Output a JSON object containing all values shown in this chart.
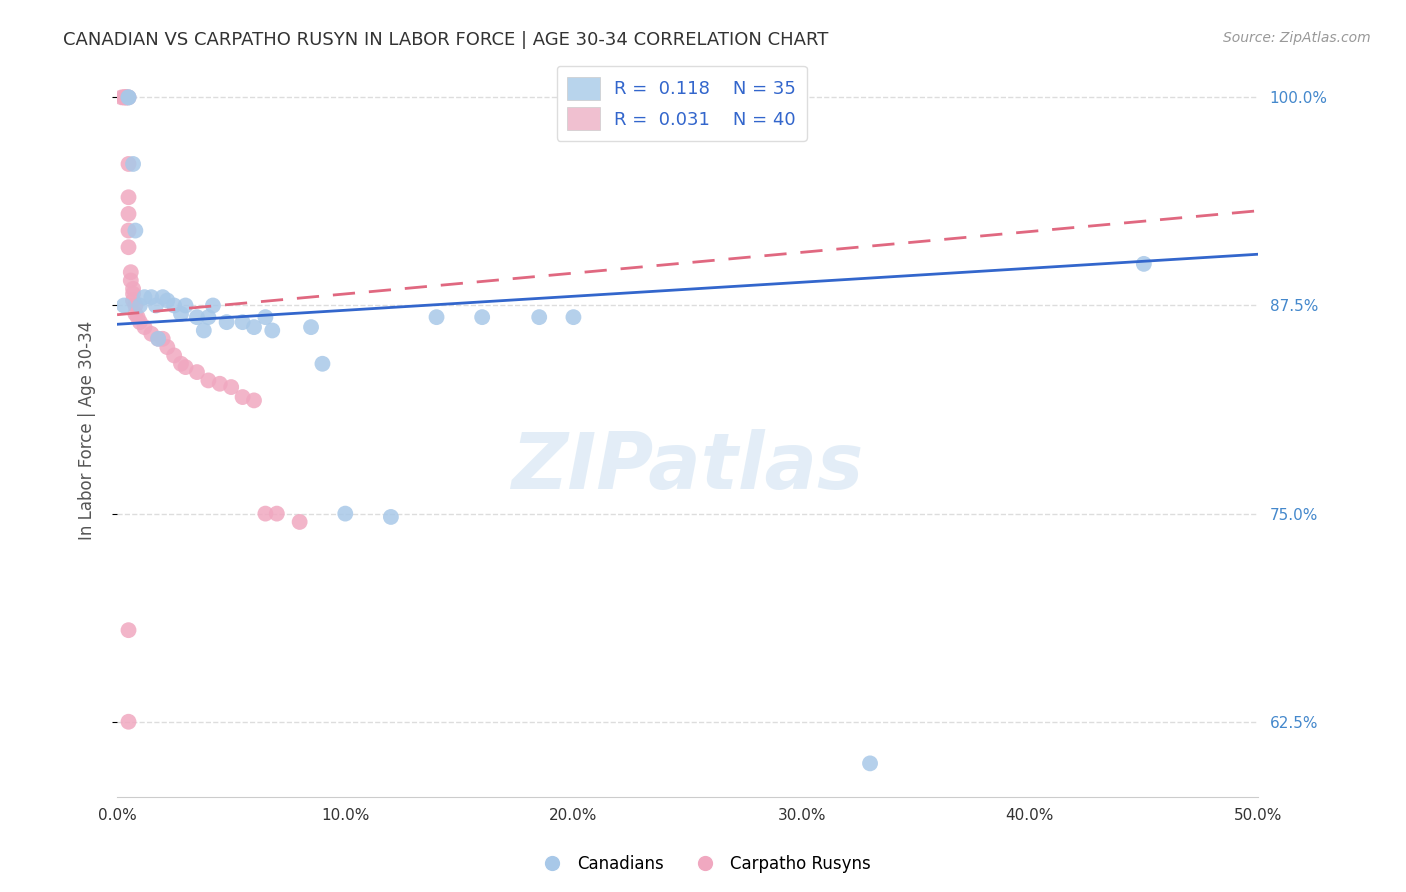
{
  "title": "CANADIAN VS CARPATHO RUSYN IN LABOR FORCE | AGE 30-34 CORRELATION CHART",
  "source": "Source: ZipAtlas.com",
  "ylabel": "In Labor Force | Age 30-34",
  "watermark": "ZIPatlas",
  "xlim": [
    0.0,
    0.5
  ],
  "ylim": [
    0.58,
    1.02
  ],
  "yticks": [
    0.625,
    0.75,
    0.875,
    1.0
  ],
  "ytick_labels": [
    "62.5%",
    "75.0%",
    "87.5%",
    "100.0%"
  ],
  "xticks": [
    0.0,
    0.1,
    0.2,
    0.3,
    0.4,
    0.5
  ],
  "xtick_labels": [
    "0.0%",
    "10.0%",
    "20.0%",
    "30.0%",
    "40.0%",
    "50.0%"
  ],
  "blue_R": 0.118,
  "blue_N": 35,
  "pink_R": 0.031,
  "pink_N": 40,
  "blue_color": "#a8c8e8",
  "pink_color": "#f0a8c0",
  "blue_line_color": "#3366cc",
  "pink_line_color": "#e06880",
  "grid_color": "#dddddd",
  "title_color": "#333333",
  "axis_label_color": "#555555",
  "right_tick_color": "#4488cc",
  "legend_box_blue": "#b8d4ec",
  "legend_box_pink": "#f0c0d0",
  "canadians_x": [
    0.003,
    0.005,
    0.005,
    0.007,
    0.008,
    0.01,
    0.012,
    0.015,
    0.017,
    0.018,
    0.02,
    0.022,
    0.025,
    0.028,
    0.03,
    0.035,
    0.038,
    0.04,
    0.042,
    0.048,
    0.055,
    0.06,
    0.065,
    0.068,
    0.085,
    0.09,
    0.1,
    0.12,
    0.14,
    0.16,
    0.185,
    0.2,
    0.21,
    0.33,
    0.45
  ],
  "canadians_y": [
    0.875,
    1.0,
    1.0,
    0.96,
    0.92,
    0.875,
    0.88,
    0.88,
    0.875,
    0.855,
    0.88,
    0.878,
    0.875,
    0.87,
    0.875,
    0.868,
    0.86,
    0.868,
    0.875,
    0.865,
    0.865,
    0.862,
    0.868,
    0.86,
    0.862,
    0.84,
    0.75,
    0.748,
    0.868,
    0.868,
    0.868,
    0.868,
    1.0,
    0.6,
    0.9
  ],
  "rusyn_x": [
    0.002,
    0.003,
    0.003,
    0.004,
    0.004,
    0.004,
    0.005,
    0.005,
    0.005,
    0.005,
    0.005,
    0.005,
    0.006,
    0.006,
    0.007,
    0.007,
    0.007,
    0.008,
    0.008,
    0.009,
    0.01,
    0.012,
    0.015,
    0.018,
    0.02,
    0.022,
    0.025,
    0.028,
    0.03,
    0.035,
    0.04,
    0.045,
    0.05,
    0.055,
    0.06,
    0.065,
    0.07,
    0.08,
    0.005,
    0.005
  ],
  "rusyn_y": [
    1.0,
    1.0,
    1.0,
    1.0,
    1.0,
    1.0,
    1.0,
    0.96,
    0.94,
    0.93,
    0.92,
    0.91,
    0.895,
    0.89,
    0.885,
    0.882,
    0.878,
    0.875,
    0.87,
    0.868,
    0.865,
    0.862,
    0.858,
    0.855,
    0.855,
    0.85,
    0.845,
    0.84,
    0.838,
    0.835,
    0.83,
    0.828,
    0.826,
    0.82,
    0.818,
    0.75,
    0.75,
    0.745,
    0.625,
    0.68
  ]
}
